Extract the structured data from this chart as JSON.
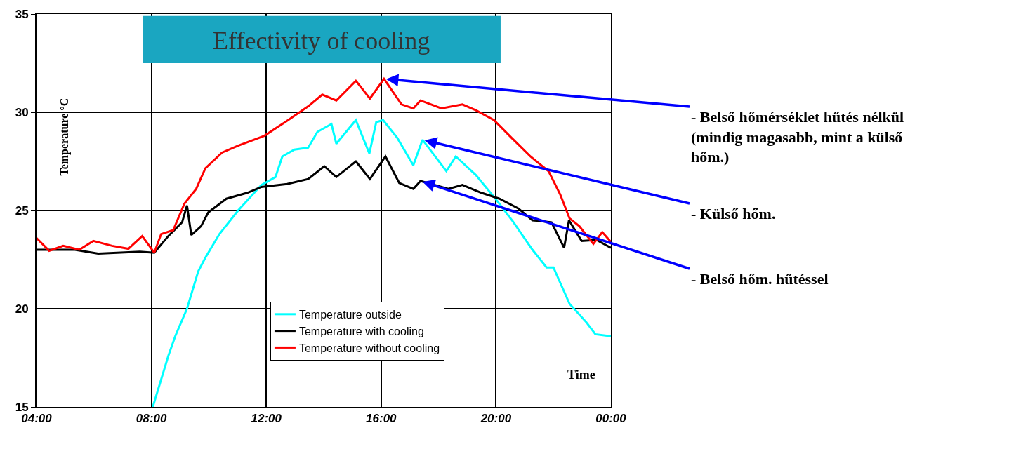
{
  "chart_data": {
    "type": "line",
    "title": "Effectivity of cooling",
    "xlabel": "Time",
    "ylabel": "Temperature °C",
    "xlim": [
      4,
      24
    ],
    "xticks": [
      {
        "value": 4,
        "label": "04:00"
      },
      {
        "value": 8,
        "label": "08:00"
      },
      {
        "value": 12,
        "label": "12:00"
      },
      {
        "value": 16,
        "label": "16:00"
      },
      {
        "value": 20,
        "label": "20:00"
      },
      {
        "value": 24,
        "label": "00:00"
      }
    ],
    "ylim": [
      15,
      35
    ],
    "yticks": [
      15,
      20,
      25,
      30,
      35
    ],
    "grid": true,
    "legend": "bottom",
    "marker": "none",
    "line_style": "solid",
    "series": [
      {
        "name": "Temperature outside",
        "color": "#00ffff",
        "x": [
          8.05,
          8.59,
          8.83,
          9.24,
          9.63,
          9.88,
          10.37,
          11.02,
          11.83,
          12.32,
          12.56,
          12.98,
          13.46,
          13.78,
          14.27,
          14.44,
          15.12,
          15.59,
          15.83,
          16.07,
          16.56,
          17.12,
          17.44,
          18.27,
          18.6,
          19.3,
          19.98,
          20.61,
          21.27,
          21.76,
          22.0,
          22.56,
          23.15,
          23.46,
          24
        ],
        "values": [
          15.0,
          17.6,
          18.6,
          20.0,
          21.9,
          22.6,
          23.8,
          25.0,
          26.3,
          26.7,
          27.75,
          28.1,
          28.2,
          29.0,
          29.4,
          28.4,
          29.6,
          27.9,
          29.5,
          29.6,
          28.7,
          27.3,
          28.6,
          27.0,
          27.75,
          26.8,
          25.6,
          24.4,
          23.0,
          22.1,
          22.1,
          20.25,
          19.3,
          18.7,
          18.6
        ]
      },
      {
        "name": "Temperature with cooling",
        "color": "#000000",
        "x": [
          4,
          5.34,
          6.15,
          7.6,
          8.1,
          8.59,
          9.07,
          9.24,
          9.39,
          9.73,
          9.98,
          10.61,
          11.34,
          11.83,
          12.73,
          13.46,
          14.02,
          14.44,
          15.12,
          15.61,
          16.15,
          16.63,
          17.12,
          17.37,
          18.34,
          18.83,
          19.49,
          20.12,
          20.78,
          21.27,
          21.93,
          22.37,
          22.54,
          22.98,
          23.5,
          24
        ],
        "values": [
          23.0,
          23.0,
          22.8,
          22.9,
          22.85,
          23.7,
          24.4,
          25.25,
          23.75,
          24.2,
          24.9,
          25.6,
          25.9,
          26.2,
          26.35,
          26.6,
          27.25,
          26.7,
          27.5,
          26.6,
          27.75,
          26.4,
          26.1,
          26.5,
          26.1,
          26.3,
          25.9,
          25.6,
          25.1,
          24.5,
          24.4,
          23.1,
          24.5,
          23.45,
          23.5,
          23.1
        ]
      },
      {
        "name": "Temperature without cooling",
        "color": "#ff0000",
        "x": [
          4,
          4.44,
          4.93,
          5.49,
          5.98,
          6.63,
          7.2,
          7.68,
          8.1,
          8.34,
          8.76,
          9.15,
          9.56,
          9.88,
          10.46,
          11.02,
          11.93,
          12.66,
          13.46,
          13.95,
          14.44,
          15.12,
          15.61,
          16.1,
          16.71,
          17.12,
          17.37,
          18.1,
          18.83,
          19.3,
          19.93,
          20.54,
          21.2,
          21.83,
          22.24,
          22.56,
          22.9,
          23.39,
          23.7,
          24
        ],
        "values": [
          23.6,
          22.95,
          23.2,
          23.0,
          23.45,
          23.2,
          23.05,
          23.7,
          22.85,
          23.8,
          24.0,
          25.35,
          26.1,
          27.15,
          27.95,
          28.3,
          28.8,
          29.5,
          30.3,
          30.9,
          30.6,
          31.6,
          30.7,
          31.7,
          30.4,
          30.2,
          30.6,
          30.2,
          30.4,
          30.1,
          29.6,
          28.7,
          27.75,
          27.0,
          25.8,
          24.6,
          24.2,
          23.3,
          23.9,
          23.4
        ]
      }
    ],
    "annotations": [
      {
        "text": "- Belső hőmérséklet hűtés nélkül\n(mindig magasabb, mint a külső\nhőm.)",
        "x": 16.1,
        "y": 31.7
      },
      {
        "text": "- Külső hőm.",
        "x": 17.44,
        "y": 28.6
      },
      {
        "text": "- Belső hőm. hűtéssel",
        "x": 17.37,
        "y": 26.5
      }
    ]
  }
}
